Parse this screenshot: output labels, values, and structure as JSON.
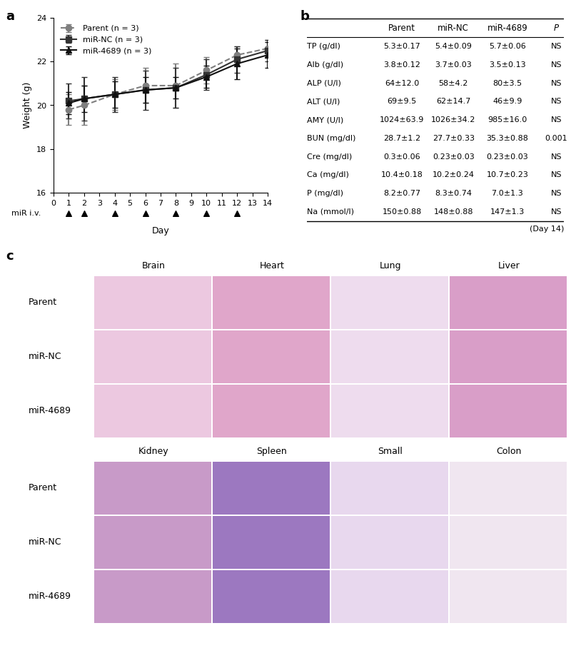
{
  "panel_labels": [
    "a",
    "b",
    "c"
  ],
  "chart_data": {
    "type": "line",
    "x_label": "Day",
    "y_label": "Weight (g)",
    "x": [
      1,
      2,
      4,
      6,
      8,
      10,
      12,
      14
    ],
    "xlim": [
      0,
      14
    ],
    "xticks": [
      0,
      1,
      2,
      3,
      4,
      5,
      6,
      7,
      8,
      9,
      10,
      11,
      12,
      13,
      14
    ],
    "ylim": [
      16,
      24
    ],
    "yticks": [
      16,
      18,
      20,
      22,
      24
    ],
    "legend": "upper left",
    "series": [
      {
        "name": "Parent (n = 3)",
        "color": "#7f7f7f",
        "marker": "circle",
        "line_style": "dashed",
        "values": [
          19.8,
          20.0,
          20.5,
          20.9,
          20.9,
          21.6,
          22.3,
          22.6
        ],
        "errors": [
          0.7,
          0.9,
          0.7,
          0.8,
          1.0,
          0.6,
          0.4,
          0.4
        ]
      },
      {
        "name": "miR-NC (n = 3)",
        "color": "#333333",
        "marker": "square",
        "line_style": "solid",
        "values": [
          20.2,
          20.3,
          20.5,
          20.7,
          20.8,
          21.4,
          22.1,
          22.5
        ],
        "errors": [
          0.8,
          1.0,
          0.8,
          0.9,
          0.9,
          0.7,
          0.6,
          0.5
        ]
      },
      {
        "name": "miR-4689 (n = 3)",
        "color": "#111111",
        "marker": "triangle",
        "line_style": "solid",
        "values": [
          20.1,
          20.3,
          20.5,
          20.7,
          20.8,
          21.3,
          21.9,
          22.3
        ],
        "errors": [
          0.5,
          0.6,
          0.6,
          0.6,
          0.5,
          0.5,
          0.7,
          0.6
        ]
      }
    ],
    "injection_label": "miR i.v.",
    "injection_days": [
      1,
      2,
      4,
      6,
      8,
      10,
      12
    ]
  },
  "table": {
    "header": [
      "",
      "Parent",
      "miR-NC",
      "miR-4689",
      "P"
    ],
    "rows": [
      [
        "TP (g/dl)",
        "5.3±0.17",
        "5.4±0.09",
        "5.7±0.06",
        "NS"
      ],
      [
        "Alb (g/dl)",
        "3.8±0.12",
        "3.7±0.03",
        "3.5±0.13",
        "NS"
      ],
      [
        "ALP (U/l)",
        "64±12.0",
        "58±4.2",
        "80±3.5",
        "NS"
      ],
      [
        "ALT (U/l)",
        "69±9.5",
        "62±14.7",
        "46±9.9",
        "NS"
      ],
      [
        "AMY (U/l)",
        "1024±63.9",
        "1026±34.2",
        "985±16.0",
        "NS"
      ],
      [
        "BUN (mg/dl)",
        "28.7±1.2",
        "27.7±0.33",
        "35.3±0.88",
        "0.001"
      ],
      [
        "Cre (mg/dl)",
        "0.3±0.06",
        "0.23±0.03",
        "0.23±0.03",
        "NS"
      ],
      [
        "Ca (mg/dl)",
        "10.4±0.18",
        "10.2±0.24",
        "10.7±0.23",
        "NS"
      ],
      [
        "P (mg/dl)",
        "8.2±0.77",
        "8.3±0.74",
        "7.0±1.3",
        "NS"
      ],
      [
        "Na (mmol/l)",
        "150±0.88",
        "148±0.88",
        "147±1.3",
        "NS"
      ]
    ],
    "footnote": "(Day 14)"
  },
  "histology": {
    "rows": [
      "Parent",
      "miR-NC",
      "miR-4689"
    ],
    "groups": [
      [
        "Brain",
        "Heart",
        "Lung",
        "Liver"
      ],
      [
        "Kidney",
        "Spleen",
        "Small",
        "Colon"
      ]
    ]
  }
}
